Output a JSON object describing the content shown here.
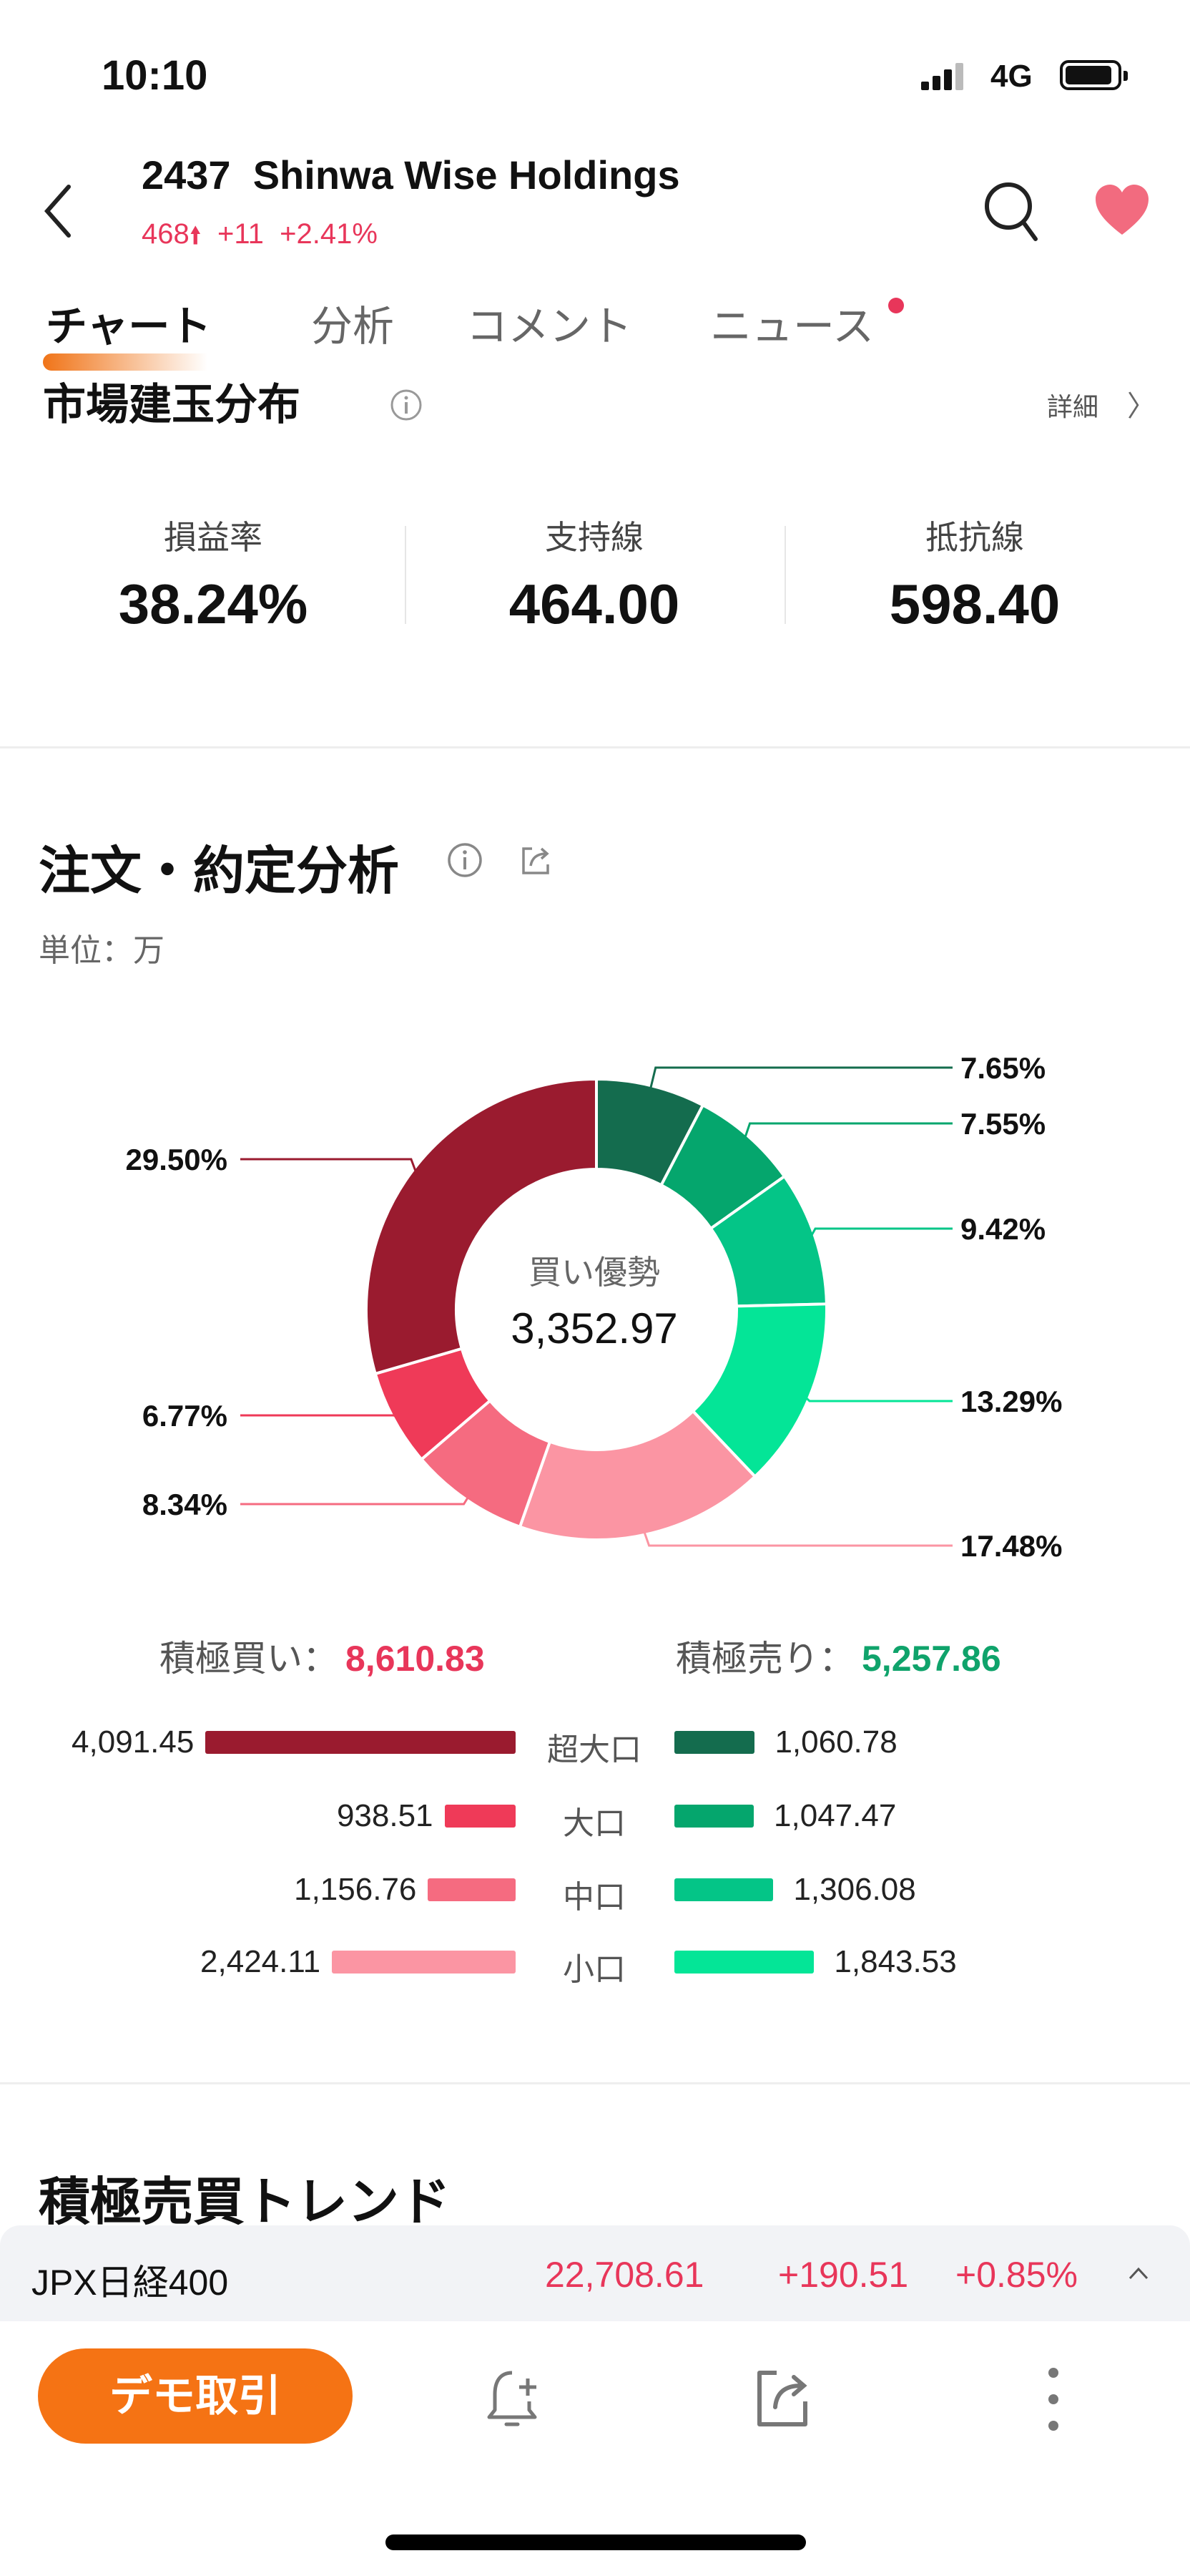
{
  "status_bar": {
    "time": "10:10",
    "network": "4G",
    "icons": [
      "signal-icon",
      "battery-icon"
    ]
  },
  "header": {
    "code": "2437",
    "name": "Shinwa Wise Holdings",
    "title": "2437  Shinwa Wise Holdings",
    "price": "468",
    "change": "+11",
    "change_pct": "+2.41%",
    "up_color": "#e8365a",
    "icons": [
      "back-icon",
      "search-icon",
      "heart-icon"
    ]
  },
  "tabs": [
    {
      "label": "チャート",
      "active": true
    },
    {
      "label": "分析"
    },
    {
      "label": "コメント"
    },
    {
      "label": "ニュース",
      "badge": true
    }
  ],
  "market_position": {
    "title": "市場建玉分布",
    "detail": "詳細",
    "stats": [
      {
        "label": "損益率",
        "value": "38.24%"
      },
      {
        "label": "支持線",
        "value": "464.00"
      },
      {
        "label": "抵抗線",
        "value": "598.40"
      }
    ]
  },
  "order_analysis": {
    "title": "注文・約定分析",
    "unit": "単位：万",
    "center_label": "買い優勢",
    "center_value": "3,352.97",
    "buy_total_label": "積極買い：",
    "buy_total": "8,610.83",
    "sell_total_label": "積極売り：",
    "sell_total": "5,257.86",
    "buy_color": "#e8365a",
    "sell_color": "#0fa36b",
    "rows": [
      {
        "label": "超大口",
        "buy": "4,091.45",
        "sell": "1,060.78",
        "buy_color": "#9a1b2f",
        "sell_color": "#146c4e"
      },
      {
        "label": "大口",
        "buy": "938.51",
        "sell": "1,047.47",
        "buy_color": "#ef3a58",
        "sell_color": "#05a66d"
      },
      {
        "label": "中口",
        "buy": "1,156.76",
        "sell": "1,306.08",
        "buy_color": "#f56b80",
        "sell_color": "#04c587"
      },
      {
        "label": "小口",
        "buy": "2,424.11",
        "sell": "1,843.53",
        "buy_color": "#fb95a3",
        "sell_color": "#04e597"
      }
    ]
  },
  "chart_data": {
    "type": "pie",
    "donut": true,
    "categories": [
      "超大口売り",
      "大口売り",
      "中口売り",
      "小口売り",
      "小口買い",
      "中口買い",
      "大口買い",
      "超大口買い"
    ],
    "values": [
      7.65,
      7.55,
      9.42,
      13.29,
      17.48,
      8.34,
      6.77,
      29.5
    ],
    "labels": [
      "7.65%",
      "7.55%",
      "9.42%",
      "13.29%",
      "17.48%",
      "8.34%",
      "6.77%",
      "29.50%"
    ],
    "colors": [
      "#146c4e",
      "#05a66d",
      "#04c587",
      "#04e597",
      "#fb95a3",
      "#f56b80",
      "#ef3a58",
      "#9a1b2f"
    ]
  },
  "trend": {
    "title": "積極売買トレンド"
  },
  "index_bar": {
    "name": "JPX日経400",
    "value": "22,708.61",
    "change": "+190.51",
    "change_pct": "+0.85%"
  },
  "bottom_bar": {
    "demo_label": "デモ取引",
    "icons": [
      "bell-plus-icon",
      "share-icon",
      "more-icon"
    ]
  }
}
